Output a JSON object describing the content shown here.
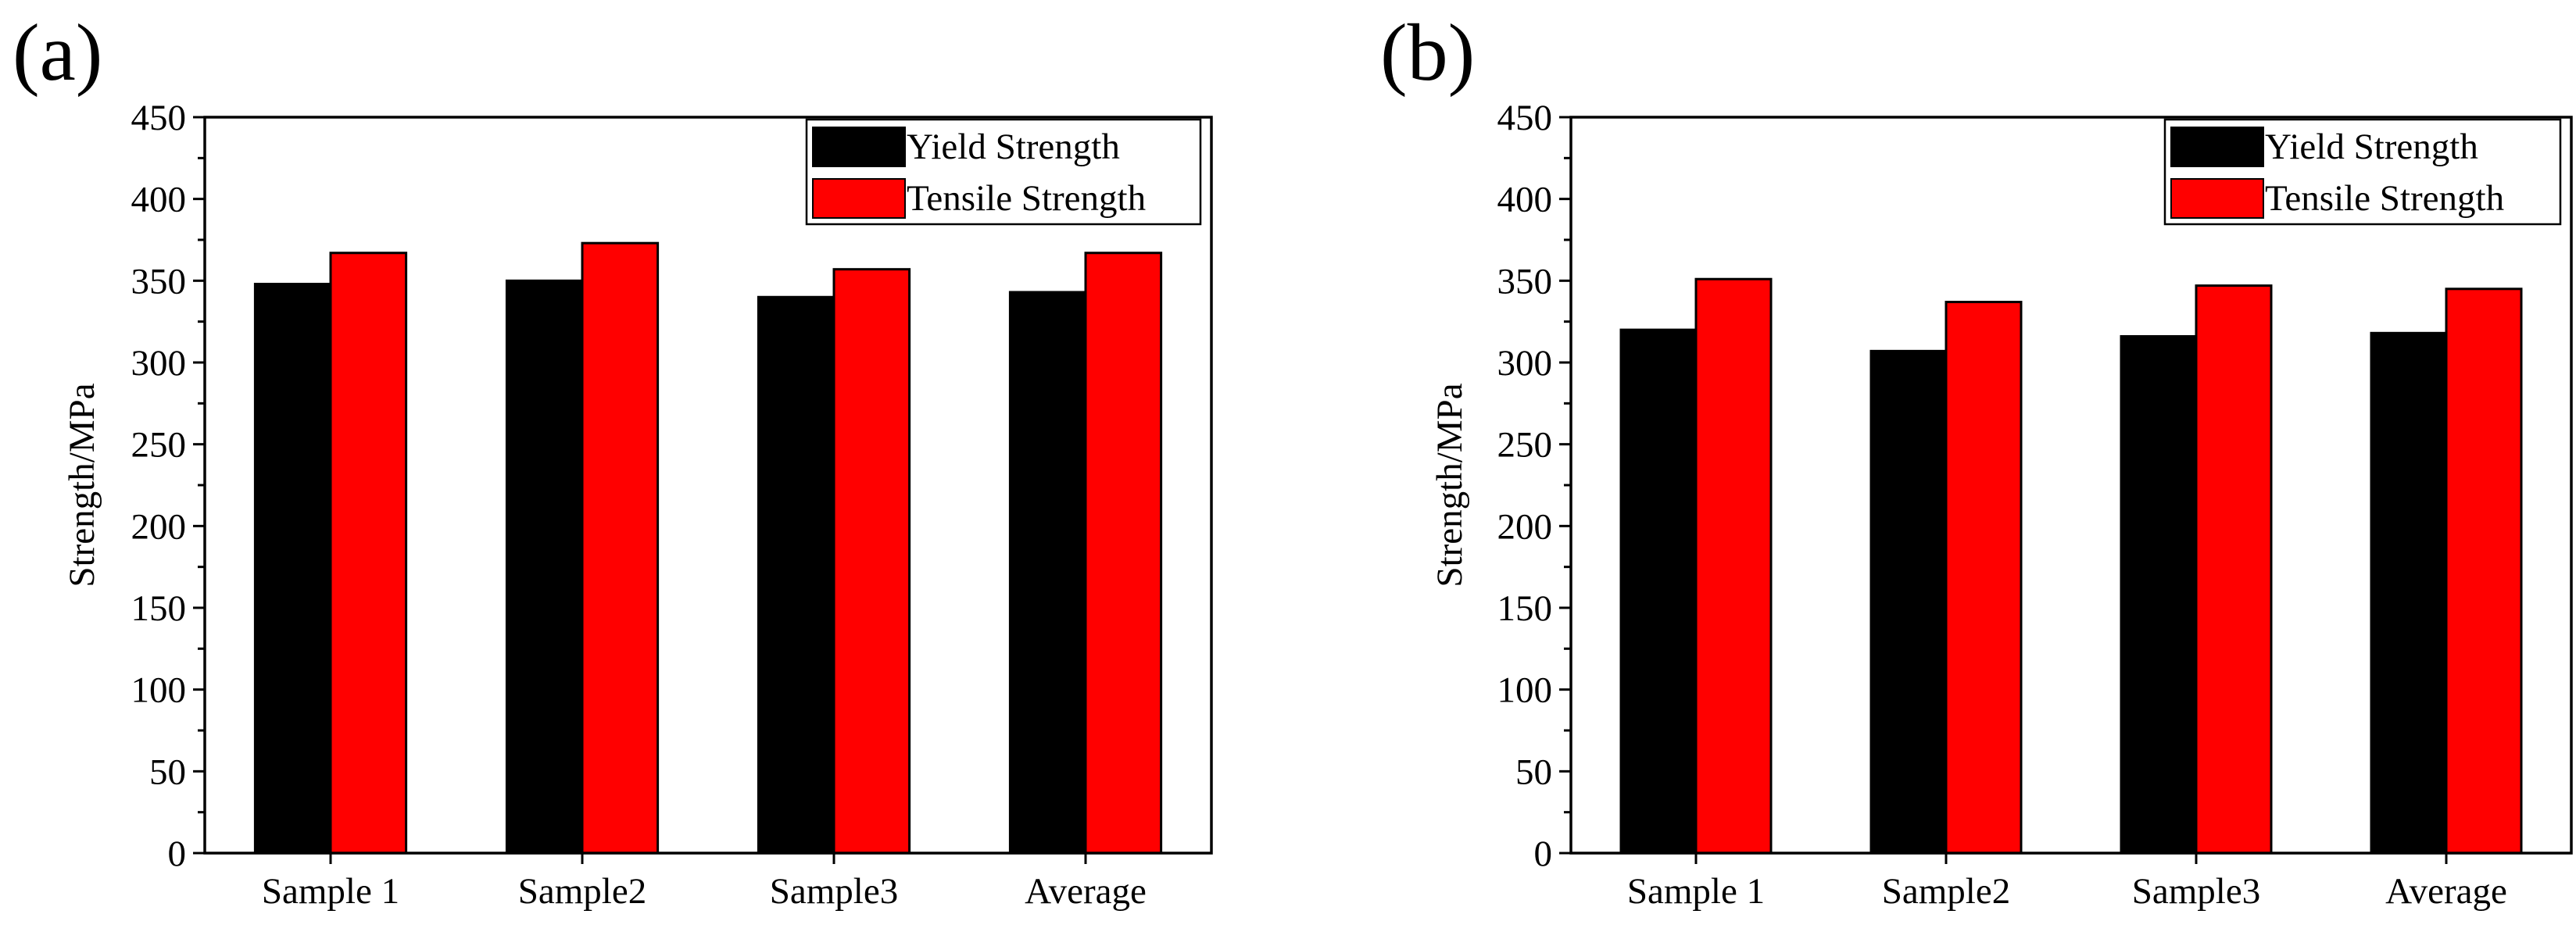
{
  "chart_data": [
    {
      "type": "bar",
      "panel_label": "(a)",
      "title": "",
      "xlabel": "",
      "ylabel": "Strength/MPa",
      "ylim": [
        0,
        450
      ],
      "yticks": [
        "0",
        "50",
        "100",
        "150",
        "200",
        "250",
        "300",
        "350",
        "400",
        "450"
      ],
      "categories": [
        "Sample 1",
        "Sample2",
        "Sample3",
        "Average"
      ],
      "legend_position": "top-right",
      "series": [
        {
          "name": "Yield Strength",
          "color": "#000000",
          "values": [
            348,
            350,
            340,
            343
          ]
        },
        {
          "name": "Tensile Strength",
          "color": "#ff0000",
          "values": [
            367,
            373,
            357,
            367
          ]
        }
      ]
    },
    {
      "type": "bar",
      "panel_label": "(b)",
      "title": "",
      "xlabel": "",
      "ylabel": "Strength/MPa",
      "ylim": [
        0,
        450
      ],
      "yticks": [
        "0",
        "50",
        "100",
        "150",
        "200",
        "250",
        "300",
        "350",
        "400",
        "450"
      ],
      "categories": [
        "Sample 1",
        "Sample2",
        "Sample3",
        "Average"
      ],
      "legend_position": "top-right",
      "series": [
        {
          "name": "Yield Strength",
          "color": "#000000",
          "values": [
            320,
            307,
            316,
            318
          ]
        },
        {
          "name": "Tensile Strength",
          "color": "#ff0000",
          "values": [
            351,
            337,
            347,
            345
          ]
        }
      ]
    }
  ]
}
